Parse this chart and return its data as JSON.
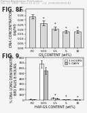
{
  "header_line1": "Patent Application Publication",
  "header_line2": "Feb. 21, 2008   Sheet 14 of 12   U.S. 2008/0000000 A1",
  "fig8f": {
    "label": "FIG. 8F",
    "categories": [
      "PU",
      "0.01",
      "1.5",
      "5",
      "10"
    ],
    "values": [
      0.34,
      0.27,
      0.21,
      0.175,
      0.175
    ],
    "errors": [
      0.025,
      0.025,
      0.02,
      0.015,
      0.015
    ],
    "ylabel": "DNA CONCENTRATION\n(ug/ml)",
    "xlabel": "GS CONTENT (wt%)",
    "ylim": [
      0,
      0.42
    ],
    "yticks": [
      0.0,
      0.05,
      0.1,
      0.15,
      0.2,
      0.25,
      0.3,
      0.35,
      0.4
    ],
    "ytick_labels": [
      "0.00",
      "0.05",
      "0.10",
      "0.15",
      "0.20",
      "0.25",
      "0.30",
      "0.35",
      "0.40"
    ],
    "bar_color": "#d8d8d8",
    "bar_edge": "#333333"
  },
  "fig9": {
    "label": "FIG. 9",
    "categories": [
      "PU",
      "0.01",
      "1.5",
      "5",
      "10"
    ],
    "values_3h": [
      18,
      680,
      38,
      12,
      8
    ],
    "values_5d": [
      15,
      560,
      28,
      10,
      6
    ],
    "errors_3h": [
      4,
      75,
      8,
      3,
      2
    ],
    "errors_5d": [
      3,
      65,
      7,
      2.5,
      2
    ],
    "ylabel": "% DNA LONG DENOMINATED\nBPD PLUS 8 HOURS",
    "xlabel": "HAP-GS CONTENT (wt%)",
    "ylim": [
      0,
      800
    ],
    "yticks": [
      0,
      100,
      200,
      300,
      400,
      500,
      600,
      700,
      800
    ],
    "ytick_labels": [
      "0",
      "100",
      "200",
      "300",
      "400",
      "500",
      "600",
      "700",
      "800"
    ],
    "color_3h": "#ffffff",
    "color_5d": "#bbbbbb",
    "edge_color": "#333333",
    "legend_3h": "3 HOURS",
    "legend_5d": "5 DAYS"
  },
  "background_color": "#f5f5f5",
  "header_fontsize": 3.0,
  "fig_label_fontsize": 5.5,
  "axis_fontsize": 3.5,
  "tick_fontsize": 3.2,
  "legend_fontsize": 3.2
}
